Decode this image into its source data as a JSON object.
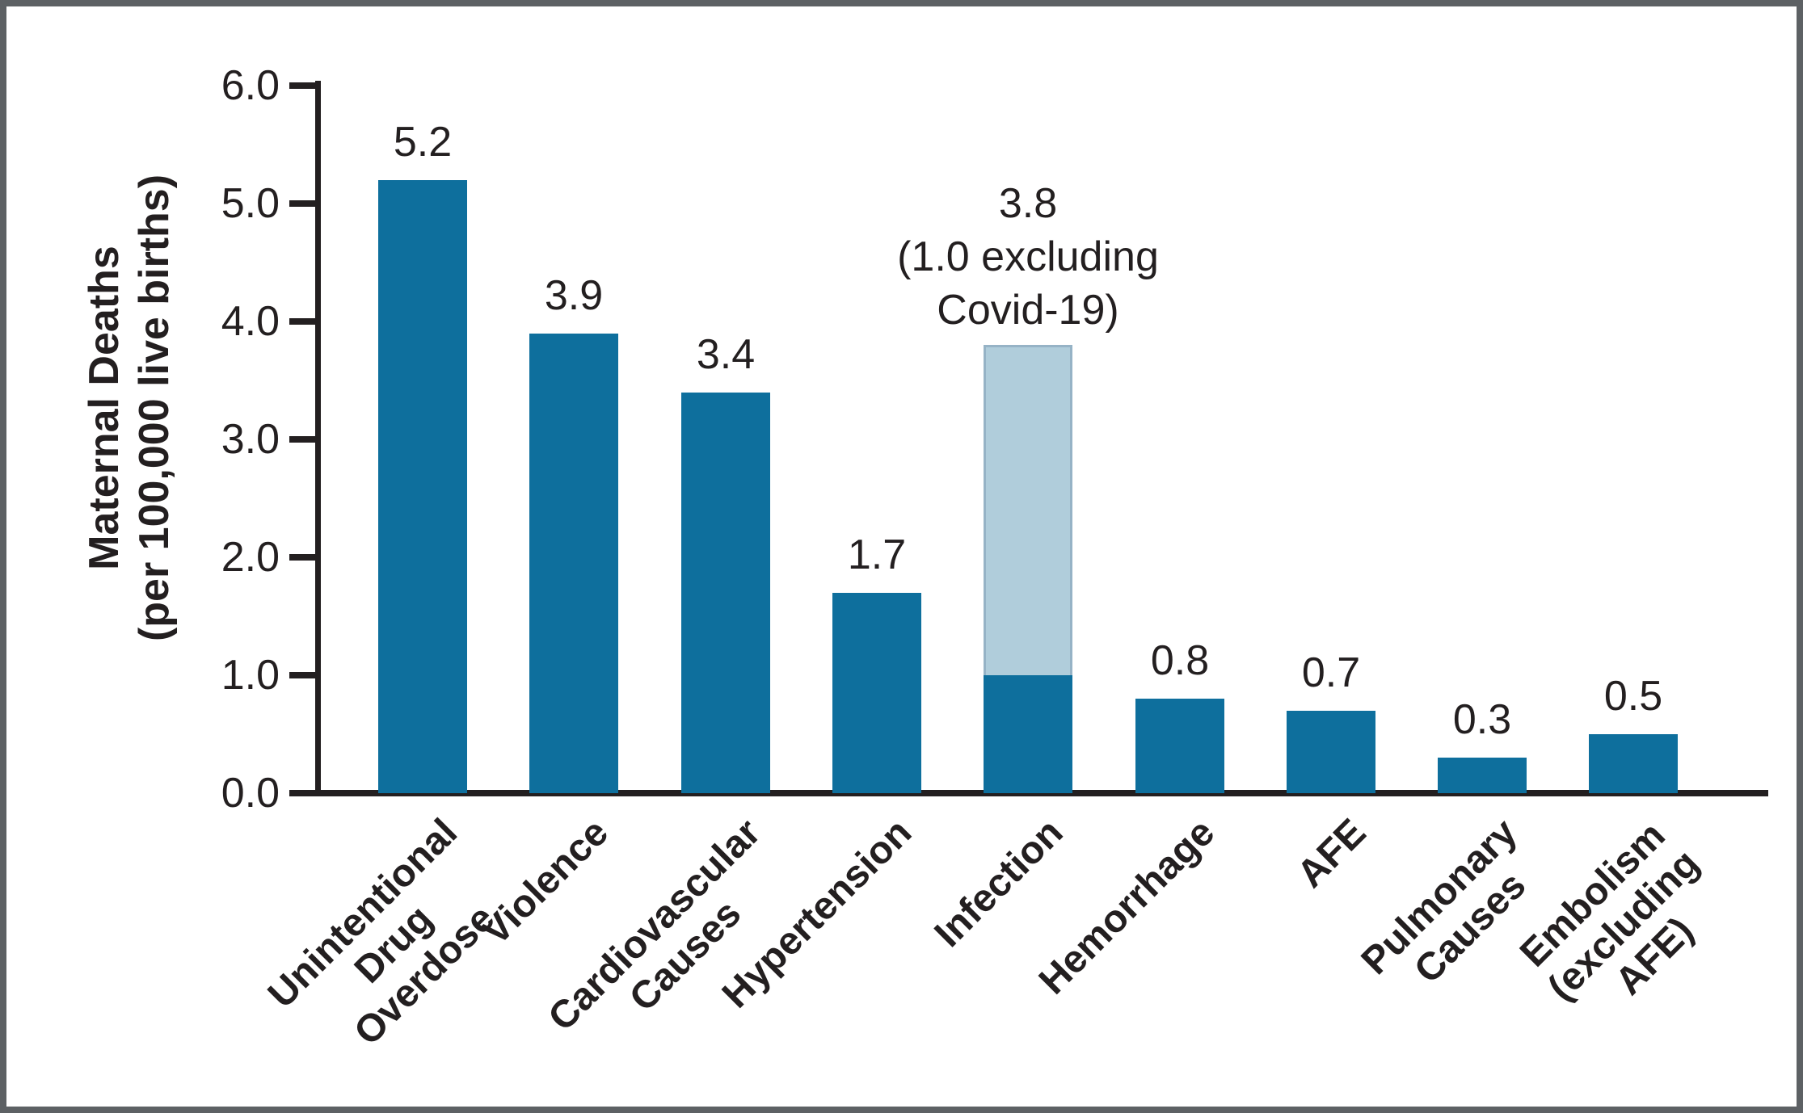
{
  "figure": {
    "ylabel": "Maternal Deaths\n(per 100,000 live births)"
  },
  "chart_data": {
    "type": "bar",
    "title": "",
    "xlabel": "",
    "ylabel": "Maternal Deaths (per 100,000 live births)",
    "ylim": [
      0,
      6
    ],
    "yticks": [
      0,
      1,
      2,
      3,
      4,
      5,
      6
    ],
    "ytick_labels": [
      "0.0",
      "1.0",
      "2.0",
      "3.0",
      "4.0",
      "5.0",
      "6.0"
    ],
    "grid": false,
    "legend": null,
    "categories": [
      "Unintentional Drug Overdose",
      "Violence",
      "Cardiovascular Causes",
      "Hypertension",
      "Infection",
      "Hemorrhage",
      "AFE",
      "Pulmonary Causes",
      "Embolism (excluding AFE)"
    ],
    "values": [
      5.2,
      3.9,
      3.4,
      1.7,
      3.8,
      0.8,
      0.7,
      0.3,
      0.5
    ],
    "bars": [
      {
        "category": "Unintentional Drug Overdose",
        "label_lines": "Unintentional\nDrug Overdose",
        "value": 5.2,
        "value_label": "5.2"
      },
      {
        "category": "Violence",
        "label_lines": "Violence",
        "value": 3.9,
        "value_label": "3.9"
      },
      {
        "category": "Cardiovascular Causes",
        "label_lines": "Cardiovascular\nCauses",
        "value": 3.4,
        "value_label": "3.4"
      },
      {
        "category": "Hypertension",
        "label_lines": "Hypertension",
        "value": 1.7,
        "value_label": "1.7"
      },
      {
        "category": "Infection",
        "label_lines": "Infection",
        "value": 3.8,
        "value_label": "3.8\n(1.0 excluding\nCovid-19)",
        "segments": [
          {
            "name": "infection-excluding-covid-19",
            "value": 1.0,
            "color": "primary"
          },
          {
            "name": "infection-covid-19-portion",
            "value": 2.8,
            "color": "secondary"
          }
        ]
      },
      {
        "category": "Hemorrhage",
        "label_lines": "Hemorrhage",
        "value": 0.8,
        "value_label": "0.8"
      },
      {
        "category": "AFE",
        "label_lines": "AFE",
        "value": 0.7,
        "value_label": "0.7"
      },
      {
        "category": "Pulmonary Causes",
        "label_lines": "Pulmonary\nCauses",
        "value": 0.3,
        "value_label": "0.3"
      },
      {
        "category": "Embolism (excluding AFE)",
        "label_lines": "Embolism\n(excluding AFE)",
        "value": 0.5,
        "value_label": "0.5"
      }
    ],
    "colors": {
      "bar_primary": "#0e6f9d",
      "bar_secondary": "#b0cddb",
      "bar_secondary_border": "#96b3c6",
      "axis": "#231f20",
      "text": "#231f20",
      "frame_border": "#5d6164",
      "background": "#ffffff"
    }
  }
}
